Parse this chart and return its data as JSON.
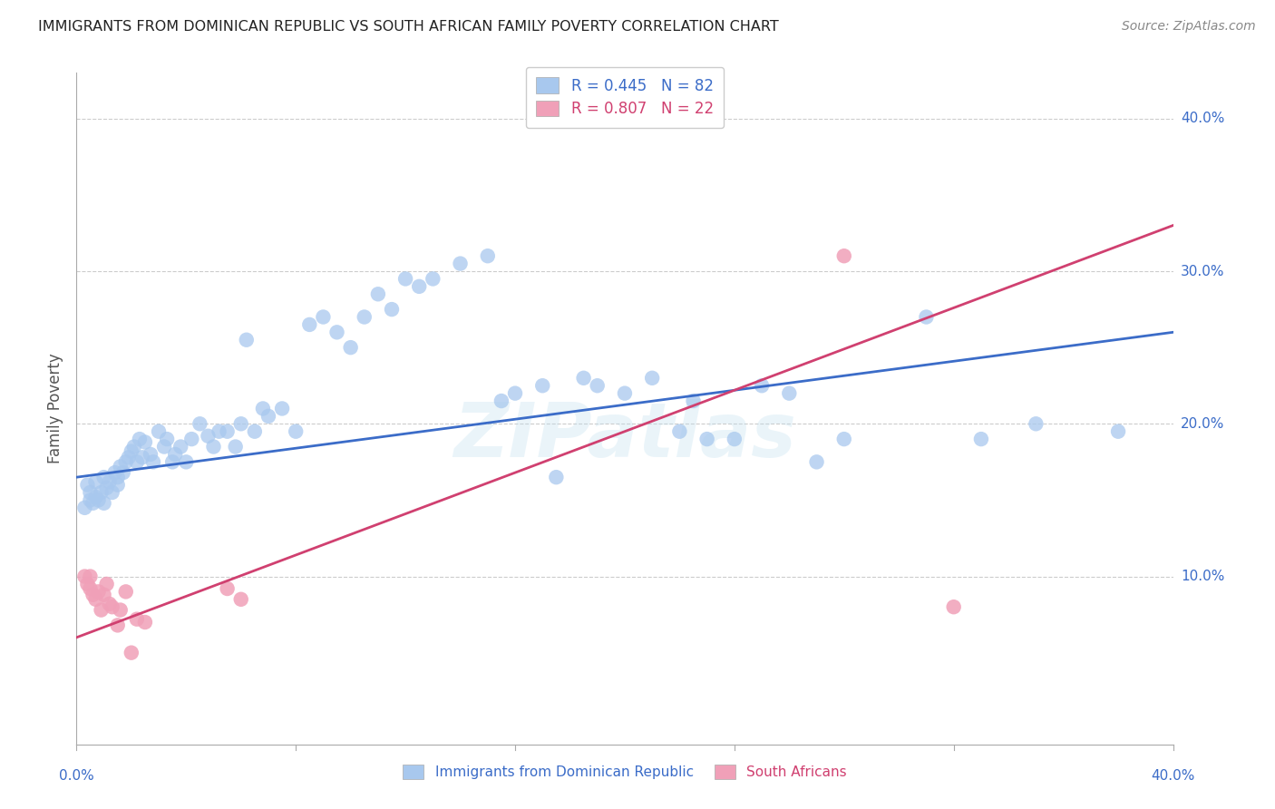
{
  "title": "IMMIGRANTS FROM DOMINICAN REPUBLIC VS SOUTH AFRICAN FAMILY POVERTY CORRELATION CHART",
  "source": "Source: ZipAtlas.com",
  "ylabel": "Family Poverty",
  "xlim": [
    0.0,
    0.4
  ],
  "ylim": [
    -0.01,
    0.43
  ],
  "yticks": [
    0.1,
    0.2,
    0.3,
    0.4
  ],
  "ytick_labels": [
    "10.0%",
    "20.0%",
    "30.0%",
    "40.0%"
  ],
  "blue_R": 0.445,
  "blue_N": 82,
  "pink_R": 0.807,
  "pink_N": 22,
  "blue_color": "#A8C8EE",
  "pink_color": "#F0A0B8",
  "blue_line_color": "#3B6CC8",
  "pink_line_color": "#D04070",
  "watermark": "ZIPatlas",
  "blue_line_x0": 0.0,
  "blue_line_y0": 0.165,
  "blue_line_x1": 0.4,
  "blue_line_y1": 0.26,
  "pink_line_x0": 0.0,
  "pink_line_y0": 0.06,
  "pink_line_x1": 0.4,
  "pink_line_y1": 0.33,
  "blue_scatter_x": [
    0.003,
    0.004,
    0.005,
    0.005,
    0.006,
    0.007,
    0.007,
    0.008,
    0.009,
    0.01,
    0.01,
    0.011,
    0.012,
    0.013,
    0.014,
    0.015,
    0.015,
    0.016,
    0.017,
    0.018,
    0.019,
    0.02,
    0.021,
    0.022,
    0.023,
    0.024,
    0.025,
    0.027,
    0.028,
    0.03,
    0.032,
    0.033,
    0.035,
    0.036,
    0.038,
    0.04,
    0.042,
    0.045,
    0.048,
    0.05,
    0.052,
    0.055,
    0.058,
    0.06,
    0.062,
    0.065,
    0.068,
    0.07,
    0.075,
    0.08,
    0.085,
    0.09,
    0.095,
    0.1,
    0.105,
    0.11,
    0.115,
    0.12,
    0.125,
    0.13,
    0.14,
    0.15,
    0.155,
    0.16,
    0.17,
    0.175,
    0.185,
    0.19,
    0.2,
    0.21,
    0.22,
    0.225,
    0.23,
    0.24,
    0.25,
    0.26,
    0.27,
    0.28,
    0.31,
    0.33,
    0.35,
    0.38
  ],
  "blue_scatter_y": [
    0.145,
    0.16,
    0.15,
    0.155,
    0.148,
    0.152,
    0.162,
    0.15,
    0.155,
    0.148,
    0.165,
    0.158,
    0.162,
    0.155,
    0.168,
    0.16,
    0.165,
    0.172,
    0.168,
    0.175,
    0.178,
    0.182,
    0.185,
    0.175,
    0.19,
    0.178,
    0.188,
    0.18,
    0.175,
    0.195,
    0.185,
    0.19,
    0.175,
    0.18,
    0.185,
    0.175,
    0.19,
    0.2,
    0.192,
    0.185,
    0.195,
    0.195,
    0.185,
    0.2,
    0.255,
    0.195,
    0.21,
    0.205,
    0.21,
    0.195,
    0.265,
    0.27,
    0.26,
    0.25,
    0.27,
    0.285,
    0.275,
    0.295,
    0.29,
    0.295,
    0.305,
    0.31,
    0.215,
    0.22,
    0.225,
    0.165,
    0.23,
    0.225,
    0.22,
    0.23,
    0.195,
    0.215,
    0.19,
    0.19,
    0.225,
    0.22,
    0.175,
    0.19,
    0.27,
    0.19,
    0.2,
    0.195
  ],
  "pink_scatter_x": [
    0.003,
    0.004,
    0.005,
    0.005,
    0.006,
    0.007,
    0.008,
    0.009,
    0.01,
    0.011,
    0.012,
    0.013,
    0.015,
    0.016,
    0.018,
    0.02,
    0.022,
    0.025,
    0.055,
    0.06,
    0.28,
    0.32
  ],
  "pink_scatter_y": [
    0.1,
    0.095,
    0.092,
    0.1,
    0.088,
    0.085,
    0.09,
    0.078,
    0.088,
    0.095,
    0.082,
    0.08,
    0.068,
    0.078,
    0.09,
    0.05,
    0.072,
    0.07,
    0.092,
    0.085,
    0.31,
    0.08
  ]
}
